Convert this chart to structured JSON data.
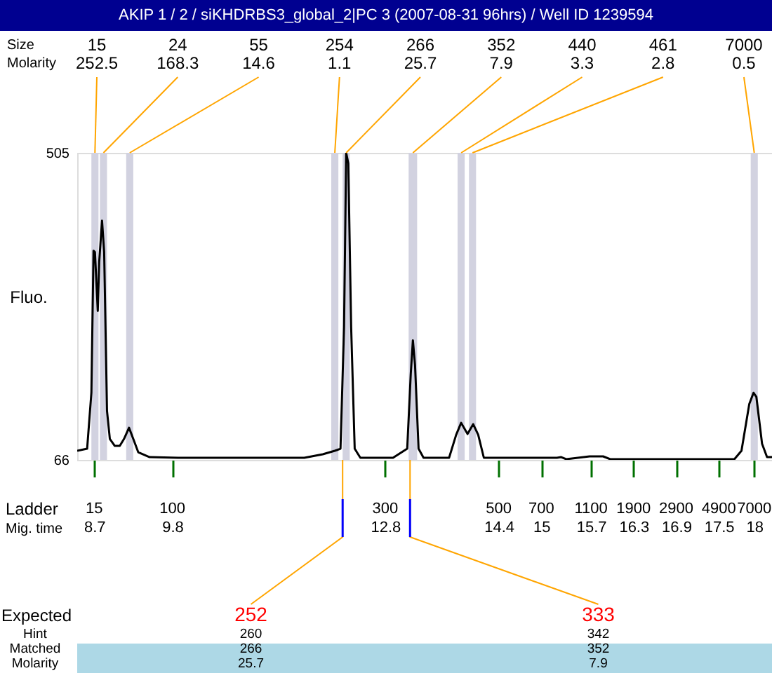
{
  "chart_data": {
    "type": "line",
    "title": "AKIP 1 / 2 / siKHDRBS3_global_2|PC 3 (2007-08-31 96hrs) / Well ID 1239594",
    "xlabel": "Mig. time",
    "ylabel": "Fluo.",
    "x": [
      8.46,
      8.6,
      8.66,
      8.69,
      8.71,
      8.75,
      8.77,
      8.81,
      8.84,
      8.88,
      8.92,
      8.99,
      9.06,
      9.12,
      9.19,
      9.25,
      9.32,
      9.48,
      9.88,
      11.66,
      11.92,
      12.09,
      12.17,
      12.22,
      12.25,
      12.28,
      12.32,
      12.37,
      12.45,
      12.91,
      13.11,
      13.16,
      13.19,
      13.22,
      13.27,
      13.34,
      13.7,
      13.8,
      13.87,
      13.96,
      14.04,
      14.11,
      14.19,
      15.22,
      15.28,
      15.35,
      15.68,
      15.87,
      15.97,
      17.72,
      17.82,
      17.93,
      17.99,
      18.03,
      18.11,
      18.18,
      18.25
    ],
    "series": [
      {
        "color": "#000000",
        "values": [
          79,
          82,
          162,
          365,
          363,
          279,
          349,
          408,
          363,
          136,
          96,
          86,
          86,
          96,
          112,
          96,
          77,
          70,
          69,
          69,
          74,
          79,
          82,
          256,
          505,
          490,
          256,
          82,
          69,
          69,
          82,
          189,
          237,
          202,
          82,
          69,
          69,
          102,
          119,
          103,
          117,
          102,
          69,
          69,
          70,
          67,
          71,
          71,
          67,
          67,
          79,
          146,
          162,
          156,
          89,
          70,
          70
        ]
      }
    ],
    "xlim": [
      8.46,
      18.25
    ],
    "ylim": [
      66,
      505
    ],
    "xticks": [
      8.7,
      9.8,
      12.8,
      14.4,
      15,
      15.7,
      16.3,
      16.9,
      17.5,
      18
    ],
    "yticks": [
      66,
      505
    ],
    "bands": [
      {
        "axis": "x",
        "from": 8.66,
        "to": 8.76,
        "color": "#d2d2e0",
        "label": "15\n252.5"
      },
      {
        "axis": "x",
        "from": 8.78,
        "to": 8.88,
        "color": "#d2d2e0",
        "label": "24\n168.3"
      },
      {
        "axis": "x",
        "from": 9.15,
        "to": 9.25,
        "color": "#d2d2e0",
        "label": "55\n14.6"
      },
      {
        "axis": "x",
        "from": 12.04,
        "to": 12.14,
        "color": "#d2d2e0",
        "label": "254\n1.1"
      },
      {
        "axis": "x",
        "from": 12.2,
        "to": 12.3,
        "color": "#d2d2e0",
        "label": "266\n25.7"
      },
      {
        "axis": "x",
        "from": 13.13,
        "to": 13.25,
        "color": "#d2d2e0",
        "label": "352\n7.9"
      },
      {
        "axis": "x",
        "from": 13.82,
        "to": 13.92,
        "color": "#d2d2e0",
        "label": "440\n3.3"
      },
      {
        "axis": "x",
        "from": 13.98,
        "to": 14.08,
        "color": "#d2d2e0",
        "label": "461\n2.8"
      },
      {
        "axis": "x",
        "from": 17.95,
        "to": 18.05,
        "color": "#d2d2e0",
        "label": "7000\n0.5"
      }
    ],
    "annotations": [
      "Size\nMolarity",
      "Ladder",
      "15",
      "100",
      "300",
      "500",
      "700",
      "1100",
      "1900",
      "2900",
      "4900",
      "7000",
      "Expected",
      "Hint\nMatched\nMolarity",
      {
        "text": "252",
        "x": 12.2,
        "y": 66
      },
      "260\n266\n25.7",
      {
        "text": "333",
        "x": 13.15,
        "y": 66
      },
      "342\n352\n7.9"
    ],
    "grid": false,
    "marker": "none",
    "line_style": "solid"
  }
}
